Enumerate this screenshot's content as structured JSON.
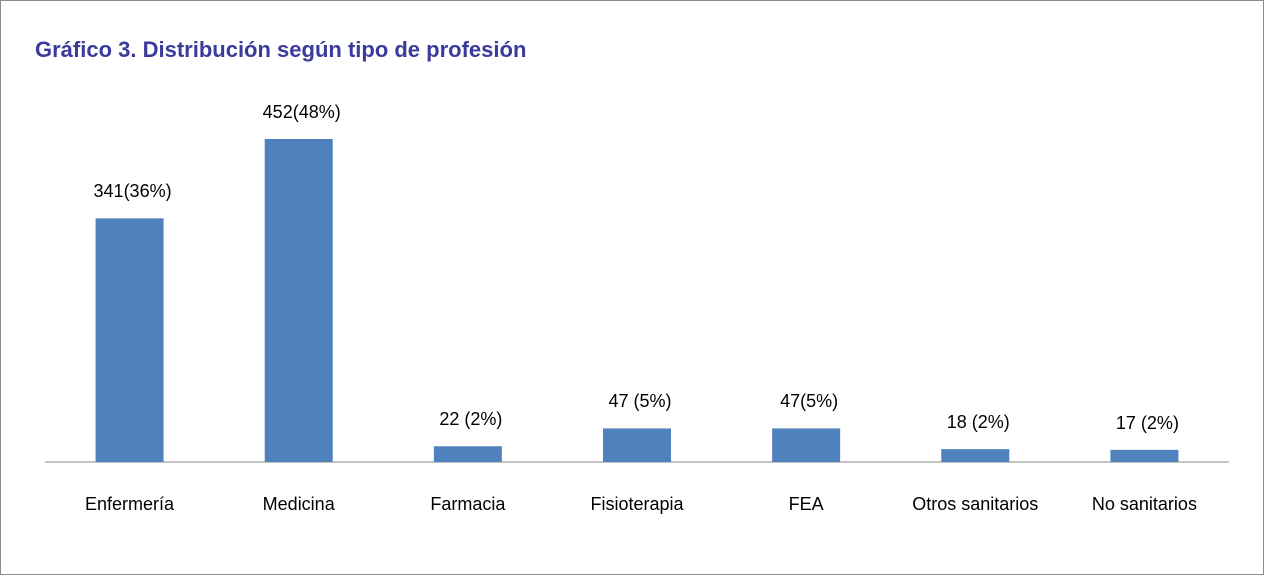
{
  "chart_data": {
    "type": "bar",
    "title": "Gráfico 3. Distribución según tipo de profesión",
    "categories": [
      "Enfermería",
      "Medicina",
      "Farmacia",
      "Fisioterapia",
      "FEA",
      "Otros sanitarios",
      "No sanitarios"
    ],
    "values": [
      341,
      452,
      22,
      47,
      47,
      18,
      17
    ],
    "value_labels": [
      "341(36%)",
      "452(48%)",
      "22 (2%)",
      "47 (5%)",
      "47(5%)",
      "18 (2%)",
      "17 (2%)"
    ],
    "color": "#4f81bd"
  }
}
